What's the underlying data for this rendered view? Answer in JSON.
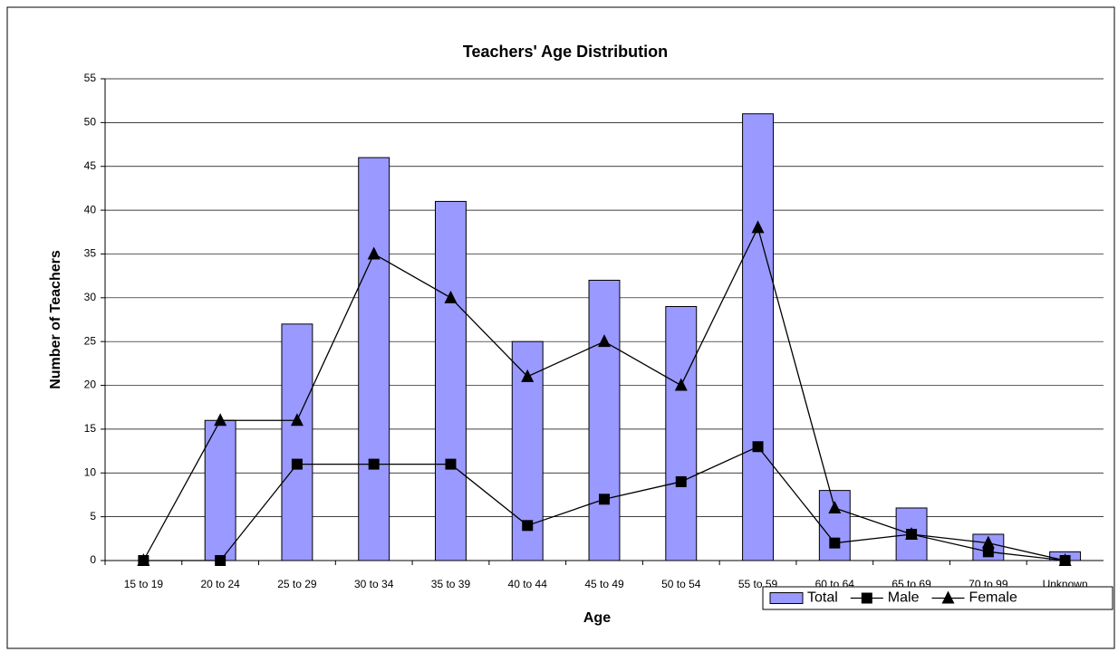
{
  "chart_data": {
    "type": "bar",
    "title": "Teachers' Age Distribution",
    "x_label": "Age",
    "y_label": "Number of Teachers",
    "categories": [
      "15 to 19",
      "20 to 24",
      "25 to 29",
      "30 to 34",
      "35 to 39",
      "40 to 44",
      "45 to 49",
      "50 to 54",
      "55 to 59",
      "60 to 64",
      "65 to 69",
      "70 to 99",
      "Unknown"
    ],
    "series": [
      {
        "name": "Total",
        "type": "bar",
        "color": "#9999ff",
        "values": [
          0,
          16,
          27,
          46,
          41,
          25,
          32,
          29,
          51,
          8,
          6,
          3,
          1
        ]
      },
      {
        "name": "Male",
        "type": "line",
        "marker": "square",
        "color": "#000000",
        "values": [
          0,
          0,
          11,
          11,
          11,
          4,
          7,
          9,
          13,
          2,
          3,
          1,
          0
        ]
      },
      {
        "name": "Female",
        "type": "line",
        "marker": "triangle",
        "color": "#000000",
        "values": [
          0,
          16,
          16,
          35,
          30,
          21,
          25,
          20,
          38,
          6,
          3,
          2,
          0
        ]
      }
    ],
    "ylim": [
      0,
      55
    ],
    "yticks": [
      0,
      5,
      10,
      15,
      20,
      25,
      30,
      35,
      40,
      45,
      50,
      55
    ],
    "grid": true,
    "legend": "bottom-right"
  }
}
